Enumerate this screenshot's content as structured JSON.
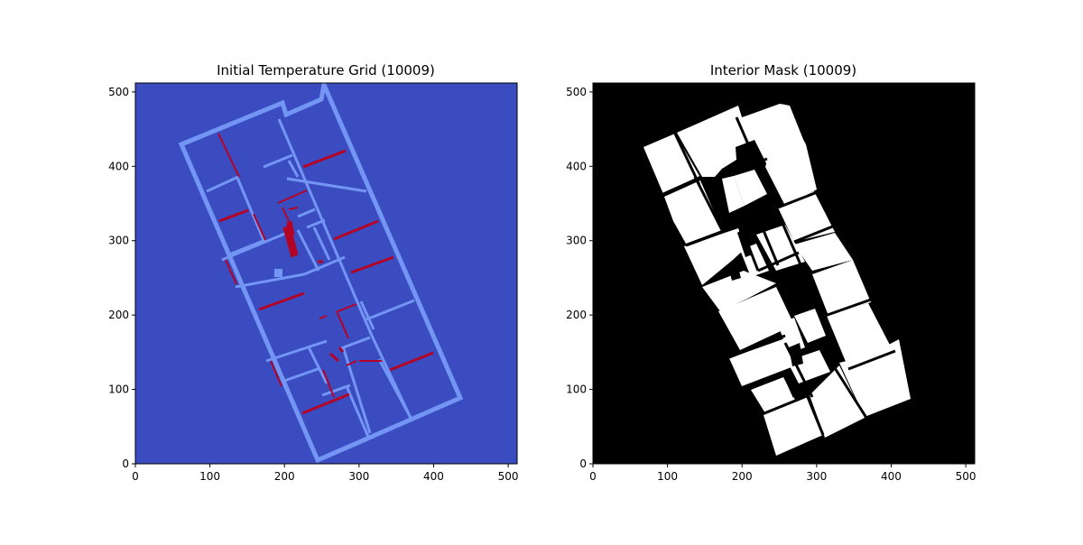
{
  "chart_data": [
    {
      "type": "heatmap",
      "title": "Initial Temperature Grid (10009)",
      "xlim": [
        0,
        512
      ],
      "ylim": [
        512,
        0
      ],
      "xticks": [
        0,
        100,
        200,
        300,
        400,
        500
      ],
      "yticks": [
        0,
        100,
        200,
        300,
        400,
        500
      ],
      "grid": false,
      "colors": {
        "background": "#3b4cc0",
        "walls": "#7396f5",
        "hot_spots": "#b40426"
      }
    },
    {
      "type": "heatmap",
      "title": "Interior Mask (10009)",
      "xlim": [
        0,
        512
      ],
      "ylim": [
        512,
        0
      ],
      "xticks": [
        0,
        100,
        200,
        300,
        400,
        500
      ],
      "yticks": [
        0,
        100,
        200,
        300,
        400,
        500
      ],
      "grid": false,
      "colors": {
        "background": "#000000",
        "interior": "#ffffff"
      }
    }
  ]
}
